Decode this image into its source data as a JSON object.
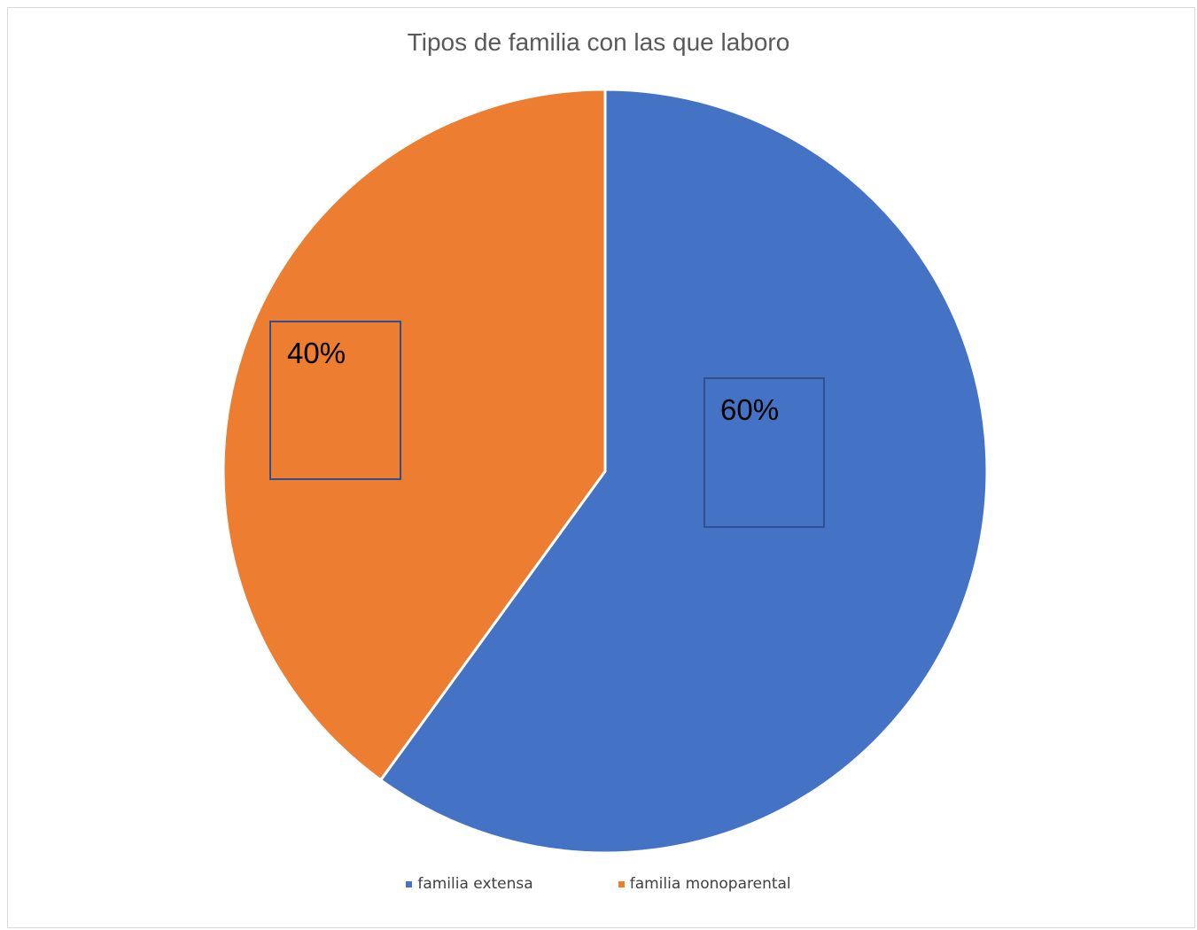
{
  "chart_data": {
    "type": "pie",
    "title": "Tipos de familia con las que laboro",
    "categories": [
      "familia extensa",
      "familia monoparental"
    ],
    "values": [
      60,
      40
    ],
    "labels": [
      "60%",
      "40%"
    ],
    "colors": [
      "#4472c4",
      "#ed7d31"
    ],
    "legend_position": "bottom"
  }
}
